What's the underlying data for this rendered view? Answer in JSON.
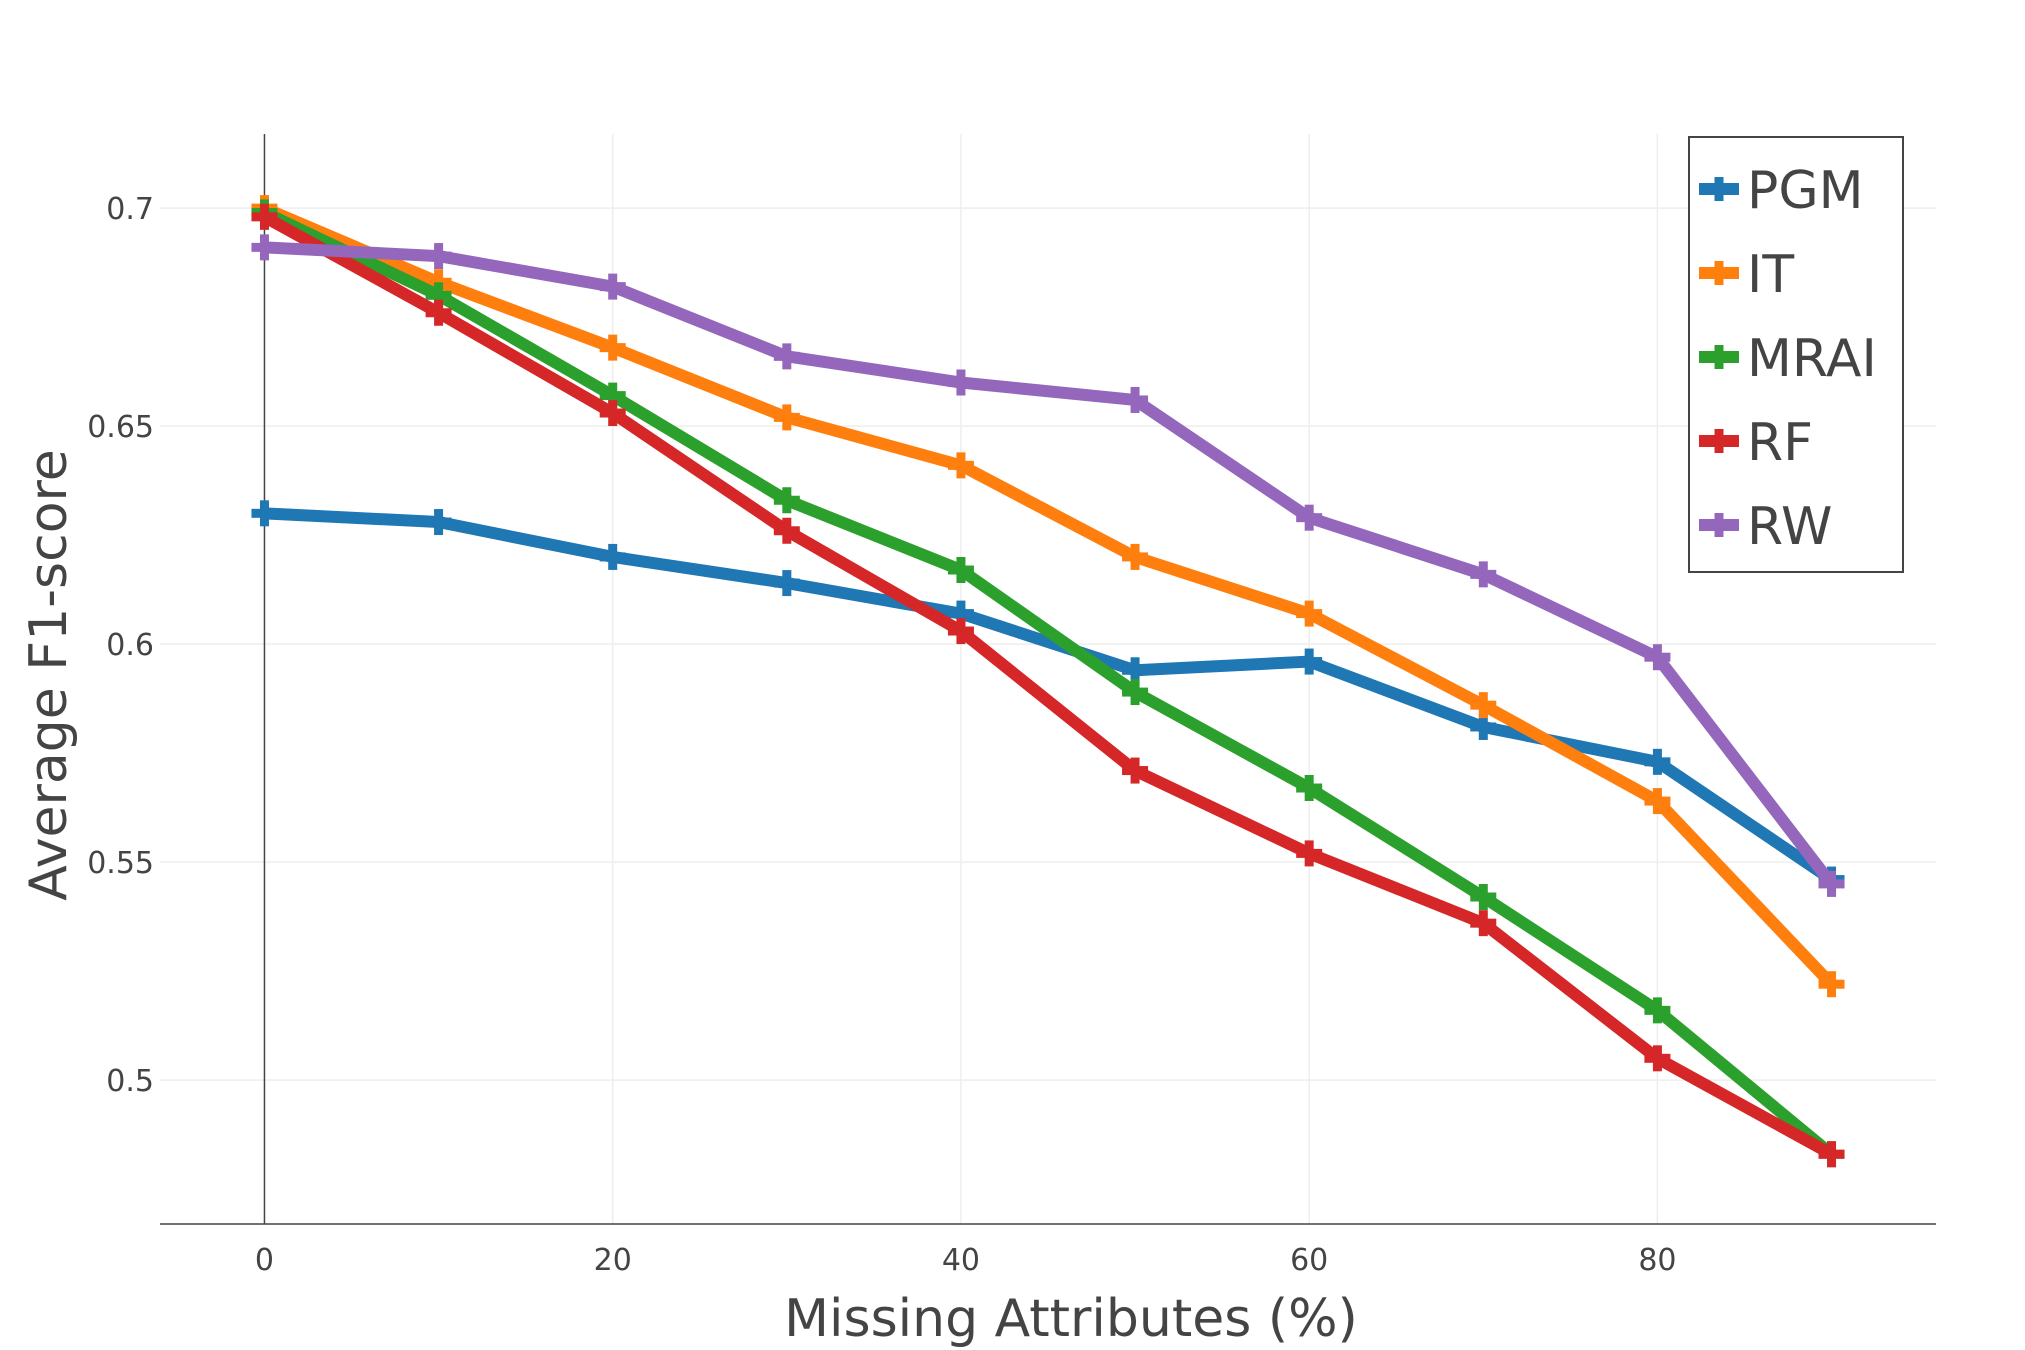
{
  "chart_data": {
    "type": "line",
    "title": "",
    "xlabel": "Missing Attributes (%)",
    "ylabel": "Average F1-score",
    "x": [
      0,
      10,
      20,
      30,
      40,
      50,
      60,
      70,
      80,
      90
    ],
    "xlim": [
      -6,
      96
    ],
    "ylim": [
      0.467,
      0.717
    ],
    "x_ticks": [
      0,
      20,
      40,
      60,
      80
    ],
    "x_tick_labels": [
      "0",
      "20",
      "40",
      "60",
      "80"
    ],
    "y_ticks": [
      0.5,
      0.55,
      0.6,
      0.65,
      0.7
    ],
    "y_tick_labels": [
      "0.5",
      "0.55",
      "0.6",
      "0.65",
      "0.7"
    ],
    "grid": true,
    "legend_position": "top-right",
    "series": [
      {
        "name": "PGM",
        "color": "#1f77b4",
        "values": [
          0.63,
          0.628,
          0.62,
          0.614,
          0.607,
          0.594,
          0.596,
          0.581,
          0.573,
          0.546
        ]
      },
      {
        "name": "IT",
        "color": "#ff7f0e",
        "values": [
          0.7,
          0.683,
          0.668,
          0.652,
          0.641,
          0.62,
          0.607,
          0.586,
          0.564,
          0.522
        ]
      },
      {
        "name": "MRAI",
        "color": "#2ca02c",
        "values": [
          0.699,
          0.68,
          0.657,
          0.633,
          0.617,
          0.589,
          0.567,
          0.542,
          0.516,
          0.483
        ]
      },
      {
        "name": "RF",
        "color": "#d62728",
        "values": [
          0.698,
          0.676,
          0.653,
          0.626,
          0.603,
          0.571,
          0.552,
          0.536,
          0.505,
          0.483
        ]
      },
      {
        "name": "RW",
        "color": "#9467bd",
        "values": [
          0.691,
          0.689,
          0.682,
          0.666,
          0.66,
          0.656,
          0.629,
          0.616,
          0.597,
          0.545
        ]
      }
    ]
  }
}
